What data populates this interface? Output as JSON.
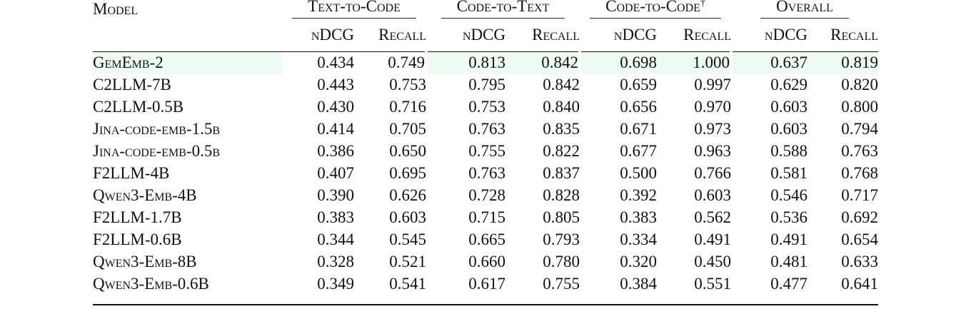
{
  "table": {
    "model_header": "Model",
    "groups": [
      {
        "label": "Text-to-Code",
        "sup": ""
      },
      {
        "label": "Code-to-Text",
        "sup": ""
      },
      {
        "label": "Code-to-Code",
        "sup": "†"
      },
      {
        "label": "Overall",
        "sup": ""
      }
    ],
    "subheaders": {
      "ndcg": "nDCG",
      "recall": "Recall"
    },
    "rows": [
      {
        "model": "GemEmb-2",
        "highlight": true,
        "values": [
          "0.434",
          "0.749",
          "0.813",
          "0.842",
          "0.698",
          "1.000",
          "0.637",
          "0.819"
        ],
        "bold": [
          false,
          false,
          true,
          true,
          true,
          true,
          true,
          true
        ]
      },
      {
        "model": "C2LLM-7B",
        "highlight": false,
        "values": [
          "0.443",
          "0.753",
          "0.795",
          "0.842",
          "0.659",
          "0.997",
          "0.629",
          "0.820"
        ],
        "bold": [
          true,
          true,
          false,
          true,
          false,
          false,
          false,
          true
        ]
      },
      {
        "model": "C2LLM-0.5B",
        "highlight": false,
        "values": [
          "0.430",
          "0.716",
          "0.753",
          "0.840",
          "0.656",
          "0.970",
          "0.603",
          "0.800"
        ],
        "bold": [
          false,
          false,
          false,
          false,
          false,
          false,
          false,
          false
        ]
      },
      {
        "model": "Jina-code-emb-1.5b",
        "highlight": false,
        "values": [
          "0.414",
          "0.705",
          "0.763",
          "0.835",
          "0.671",
          "0.973",
          "0.603",
          "0.794"
        ],
        "bold": [
          false,
          false,
          false,
          false,
          false,
          false,
          false,
          false
        ]
      },
      {
        "model": "Jina-code-emb-0.5b",
        "highlight": false,
        "values": [
          "0.386",
          "0.650",
          "0.755",
          "0.822",
          "0.677",
          "0.963",
          "0.588",
          "0.763"
        ],
        "bold": [
          false,
          false,
          false,
          false,
          false,
          false,
          false,
          false
        ]
      },
      {
        "model": "F2LLM-4B",
        "highlight": false,
        "values": [
          "0.407",
          "0.695",
          "0.763",
          "0.837",
          "0.500",
          "0.766",
          "0.581",
          "0.768"
        ],
        "bold": [
          false,
          false,
          false,
          false,
          false,
          false,
          false,
          false
        ]
      },
      {
        "model": "Qwen3-Emb-4B",
        "highlight": false,
        "values": [
          "0.390",
          "0.626",
          "0.728",
          "0.828",
          "0.392",
          "0.603",
          "0.546",
          "0.717"
        ],
        "bold": [
          false,
          false,
          false,
          false,
          false,
          false,
          false,
          false
        ]
      },
      {
        "model": "F2LLM-1.7B",
        "highlight": false,
        "values": [
          "0.383",
          "0.603",
          "0.715",
          "0.805",
          "0.383",
          "0.562",
          "0.536",
          "0.692"
        ],
        "bold": [
          false,
          false,
          false,
          false,
          false,
          false,
          false,
          false
        ]
      },
      {
        "model": "F2LLM-0.6B",
        "highlight": false,
        "values": [
          "0.344",
          "0.545",
          "0.665",
          "0.793",
          "0.334",
          "0.491",
          "0.491",
          "0.654"
        ],
        "bold": [
          false,
          false,
          false,
          false,
          false,
          false,
          false,
          false
        ]
      },
      {
        "model": "Qwen3-Emb-8B",
        "highlight": false,
        "values": [
          "0.328",
          "0.521",
          "0.660",
          "0.780",
          "0.320",
          "0.450",
          "0.481",
          "0.633"
        ],
        "bold": [
          false,
          false,
          false,
          false,
          false,
          false,
          false,
          false
        ]
      },
      {
        "model": "Qwen3-Emb-0.6B",
        "highlight": false,
        "values": [
          "0.349",
          "0.541",
          "0.617",
          "0.755",
          "0.384",
          "0.551",
          "0.477",
          "0.641"
        ],
        "bold": [
          false,
          false,
          false,
          false,
          false,
          false,
          false,
          false
        ]
      }
    ]
  },
  "colors": {
    "highlight_row": "#eefbf0",
    "text": "#111111",
    "rule": "#111111"
  }
}
